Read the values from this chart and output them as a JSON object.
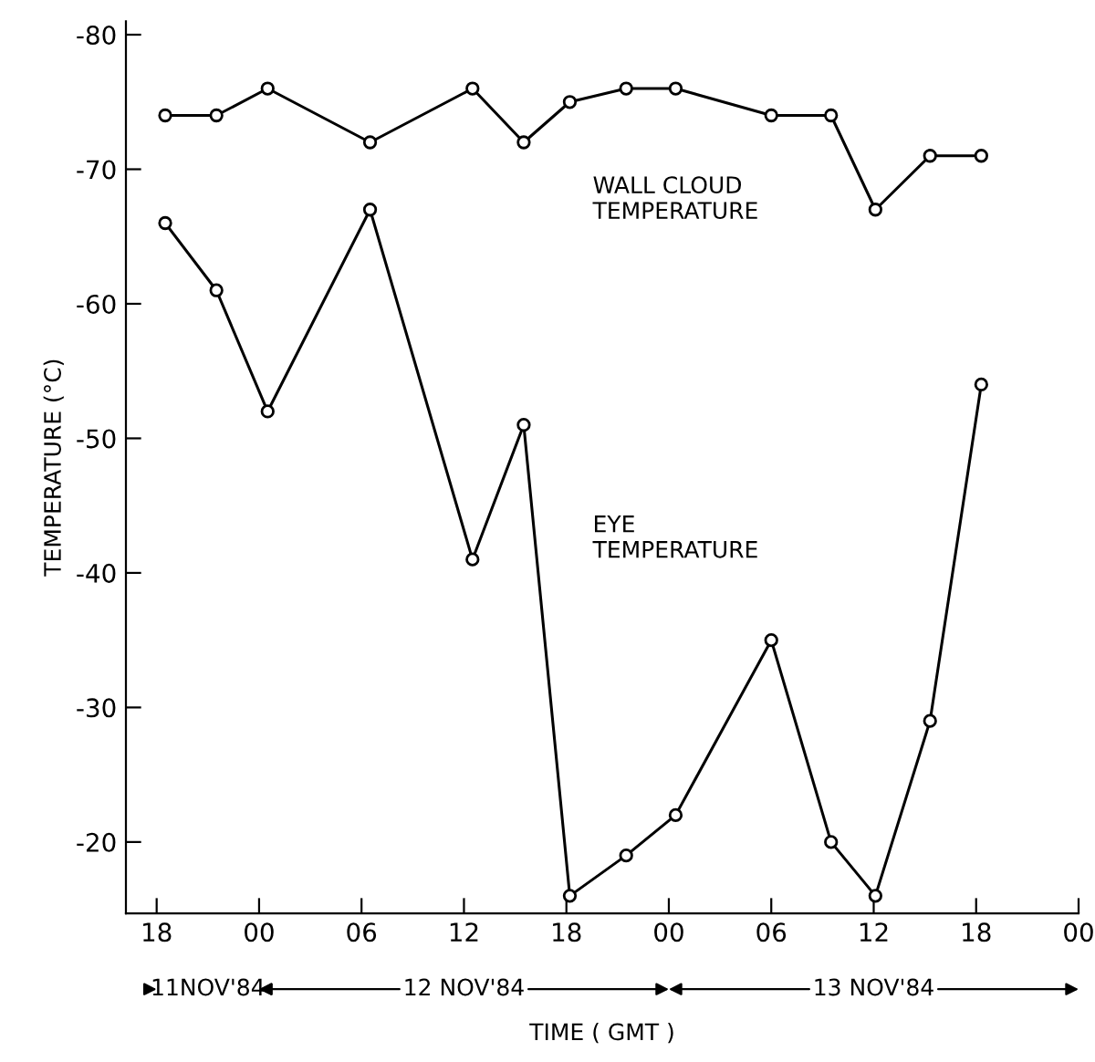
{
  "chart_data": {
    "type": "line",
    "xlabel": "TIME ( GMT )",
    "ylabel": "TEMPERATURE (°C)",
    "series": [
      {
        "x": [
          "1984-11-11T18:30",
          "1984-11-11T21:30",
          "1984-11-12T00:30",
          "1984-11-12T06:30",
          "1984-11-12T12:30",
          "1984-11-12T15:30",
          "1984-11-12T18:12",
          "1984-11-12T21:30",
          "1984-11-13T00:24",
          "1984-11-13T06:00",
          "1984-11-13T09:30",
          "1984-11-13T12:06",
          "1984-11-13T15:18",
          "1984-11-13T18:18"
        ],
        "values": [
          -74,
          -74,
          -76,
          -72,
          -76,
          -72,
          -75,
          -76,
          -76,
          -74,
          -74,
          -67,
          -71,
          -71
        ],
        "color": "#000000"
      },
      {
        "x": [
          "1984-11-11T18:30",
          "1984-11-11T21:30",
          "1984-11-12T00:30",
          "1984-11-12T06:30",
          "1984-11-12T12:30",
          "1984-11-12T15:30",
          "1984-11-12T18:12",
          "1984-11-12T21:30",
          "1984-11-13T00:24",
          "1984-11-13T06:00",
          "1984-11-13T09:30",
          "1984-11-13T12:06",
          "1984-11-13T15:18",
          "1984-11-13T18:18"
        ],
        "values": [
          -66,
          -61,
          -52,
          -67,
          -41,
          -51,
          -16,
          -19,
          -22,
          -35,
          -20,
          -16,
          -29,
          -54
        ],
        "color": "#000000"
      }
    ],
    "xlim": [
      "1984-11-11T16:12",
      "1984-11-14T00:00"
    ],
    "ylim": [
      -14.7,
      -81
    ],
    "xticks": [
      {
        "value": "1984-11-11T18:00",
        "label": "18"
      },
      {
        "value": "1984-11-12T00:00",
        "label": "00"
      },
      {
        "value": "1984-11-12T06:00",
        "label": "06"
      },
      {
        "value": "1984-11-12T12:00",
        "label": "12"
      },
      {
        "value": "1984-11-12T18:00",
        "label": "18"
      },
      {
        "value": "1984-11-13T00:00",
        "label": "00"
      },
      {
        "value": "1984-11-13T06:00",
        "label": "06"
      },
      {
        "value": "1984-11-13T12:00",
        "label": "12"
      },
      {
        "value": "1984-11-13T18:00",
        "label": "18"
      },
      {
        "value": "1984-11-14T00:00",
        "label": "00"
      }
    ],
    "yticks": [
      -80,
      -70,
      -60,
      -50,
      -40,
      -30,
      -20
    ],
    "marker": "circle",
    "line_style": "solid",
    "grid": false,
    "legend": false,
    "annotations": [
      "WALL CLOUD\nTEMPERATURE",
      "EYE\nTEMPERATURE",
      "11NOV'84",
      "12 NOV'84",
      "13 NOV'84"
    ]
  }
}
